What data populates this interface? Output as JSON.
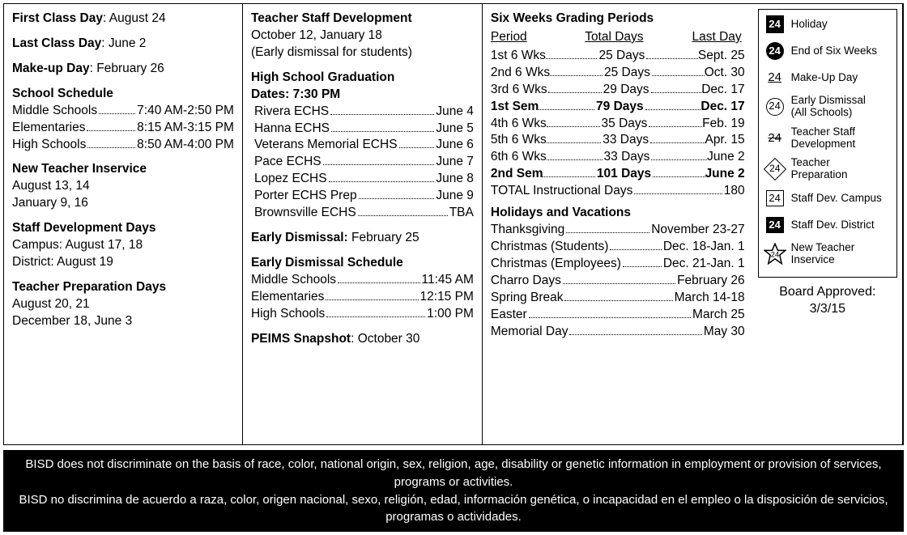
{
  "col1": {
    "first_class_label": "First Class Day",
    "first_class_value": ": August 24",
    "last_class_label": "Last Class Day",
    "last_class_value": ": June 2",
    "makeup_label": "Make-up Day",
    "makeup_value": ":  February 26",
    "school_schedule_title": "School Schedule",
    "schedule": [
      {
        "name": "Middle Schools",
        "time": "7:40 AM-2:50 PM"
      },
      {
        "name": "Elementaries",
        "time": "8:15 AM-3:15 PM"
      },
      {
        "name": "High Schools",
        "time": "8:50 AM-4:00 PM"
      }
    ],
    "new_teacher_title": "New Teacher Inservice",
    "new_teacher_l1": "August 13, 14",
    "new_teacher_l2": "January 9, 16",
    "staff_dev_title": "Staff Development Days",
    "staff_dev_l1": "Campus: August 17, 18",
    "staff_dev_l2": "District: August 19",
    "teacher_prep_title": "Teacher Preparation Days",
    "teacher_prep_l1": "August 20, 21",
    "teacher_prep_l2": "December 18, June 3"
  },
  "col2": {
    "tsd_title": "Teacher Staff Development",
    "tsd_l1": "October 12, January 18",
    "tsd_l2": "(Early dismissal for students)",
    "grad_title_l1": "High School Graduation",
    "grad_title_l2": "Dates: 7:30 PM",
    "graduations": [
      {
        "name": "Rivera ECHS",
        "date": "June 4"
      },
      {
        "name": "Hanna ECHS",
        "date": "June 5"
      },
      {
        "name": "Veterans Memorial ECHS",
        "date": "June 6"
      },
      {
        "name": "Pace ECHS",
        "date": "June 7"
      },
      {
        "name": "Lopez ECHS",
        "date": "June 8"
      },
      {
        "name": "Porter ECHS Prep",
        "date": "June 9"
      },
      {
        "name": "Brownsville ECHS",
        "date": "TBA"
      }
    ],
    "early_dismissal_label": "Early Dismissal:",
    "early_dismissal_value": " February 25",
    "eds_title": "Early Dismissal Schedule",
    "eds": [
      {
        "name": "Middle Schools",
        "time": "11:45 AM"
      },
      {
        "name": "Elementaries",
        "time": "12:15 PM"
      },
      {
        "name": "High Schools",
        "time": "1:00 PM"
      }
    ],
    "peims_label": "PEIMS Snapshot",
    "peims_value": ": October 30"
  },
  "col3": {
    "grading_title": "Six Weeks Grading Periods",
    "head_period": "Period",
    "head_days": "Total Days",
    "head_last": "Last Day",
    "rows": [
      {
        "p": "1st 6 Wks",
        "d": "25 Days",
        "l": "Sept. 25",
        "b": false
      },
      {
        "p": "2nd 6 Wks",
        "d": "25 Days",
        "l": "Oct. 30",
        "b": false
      },
      {
        "p": "3rd 6 Wks.",
        "d": "29 Days",
        "l": "Dec. 17",
        "b": false
      },
      {
        "p": "1st Sem",
        "d": "79 Days",
        "l": "Dec. 17",
        "b": true
      },
      {
        "p": "4th 6 Wks",
        "d": "35 Days",
        "l": "Feb. 19",
        "b": false
      },
      {
        "p": "5th 6 Wks",
        "d": "33 Days",
        "l": "Apr. 15",
        "b": false
      },
      {
        "p": "6th 6 Wks",
        "d": "33 Days",
        "l": "June 2",
        "b": false
      },
      {
        "p": "2nd Sem",
        "d": "101 Days",
        "l": "June 2",
        "b": true
      }
    ],
    "total_label": "TOTAL Instructional Days",
    "total_value": "180",
    "holidays_title": "Holidays and Vacations",
    "holidays": [
      {
        "n": "Thanksgiving",
        "d": "November 23-27"
      },
      {
        "n": "Christmas (Students)",
        "d": "Dec. 18-Jan. 1"
      },
      {
        "n": "Christmas (Employees)",
        "d": "Dec. 21-Jan. 1"
      },
      {
        "n": "Charro Days",
        "d": "February 26"
      },
      {
        "n": "Spring Break",
        "d": "March 14-18"
      },
      {
        "n": "Easter",
        "d": "March 25"
      },
      {
        "n": "Memorial Day",
        "d": "May 30"
      }
    ]
  },
  "legend": {
    "num": "24",
    "items": [
      {
        "sym": "holiday",
        "label": "Holiday"
      },
      {
        "sym": "circle-solid",
        "label": "End of Six Weeks"
      },
      {
        "sym": "underline",
        "label": "Make-Up Day"
      },
      {
        "sym": "circle-open",
        "label": "Early Dismissal\n(All Schools)"
      },
      {
        "sym": "strike",
        "label": "Teacher Staff\nDevelopment"
      },
      {
        "sym": "diamond",
        "label": "Teacher\nPreparation"
      },
      {
        "sym": "box-open",
        "label": "Staff Dev. Campus"
      },
      {
        "sym": "box-solid",
        "label": "Staff Dev. District"
      },
      {
        "sym": "star",
        "label": "New Teacher\nInservice"
      }
    ],
    "board_l1": "Board Approved:",
    "board_l2": "3/3/15"
  },
  "footer": {
    "en": "BISD does not discriminate on the basis of race, color, national origin, sex, religion, age, disability or genetic information in employment or provision of services, programs or activities.",
    "es": "BISD no discrimina de acuerdo a raza, color, origen nacional, sexo, religión, edad, información genética, o incapacidad en el empleo o la disposición de servicios, programas o actividades."
  }
}
